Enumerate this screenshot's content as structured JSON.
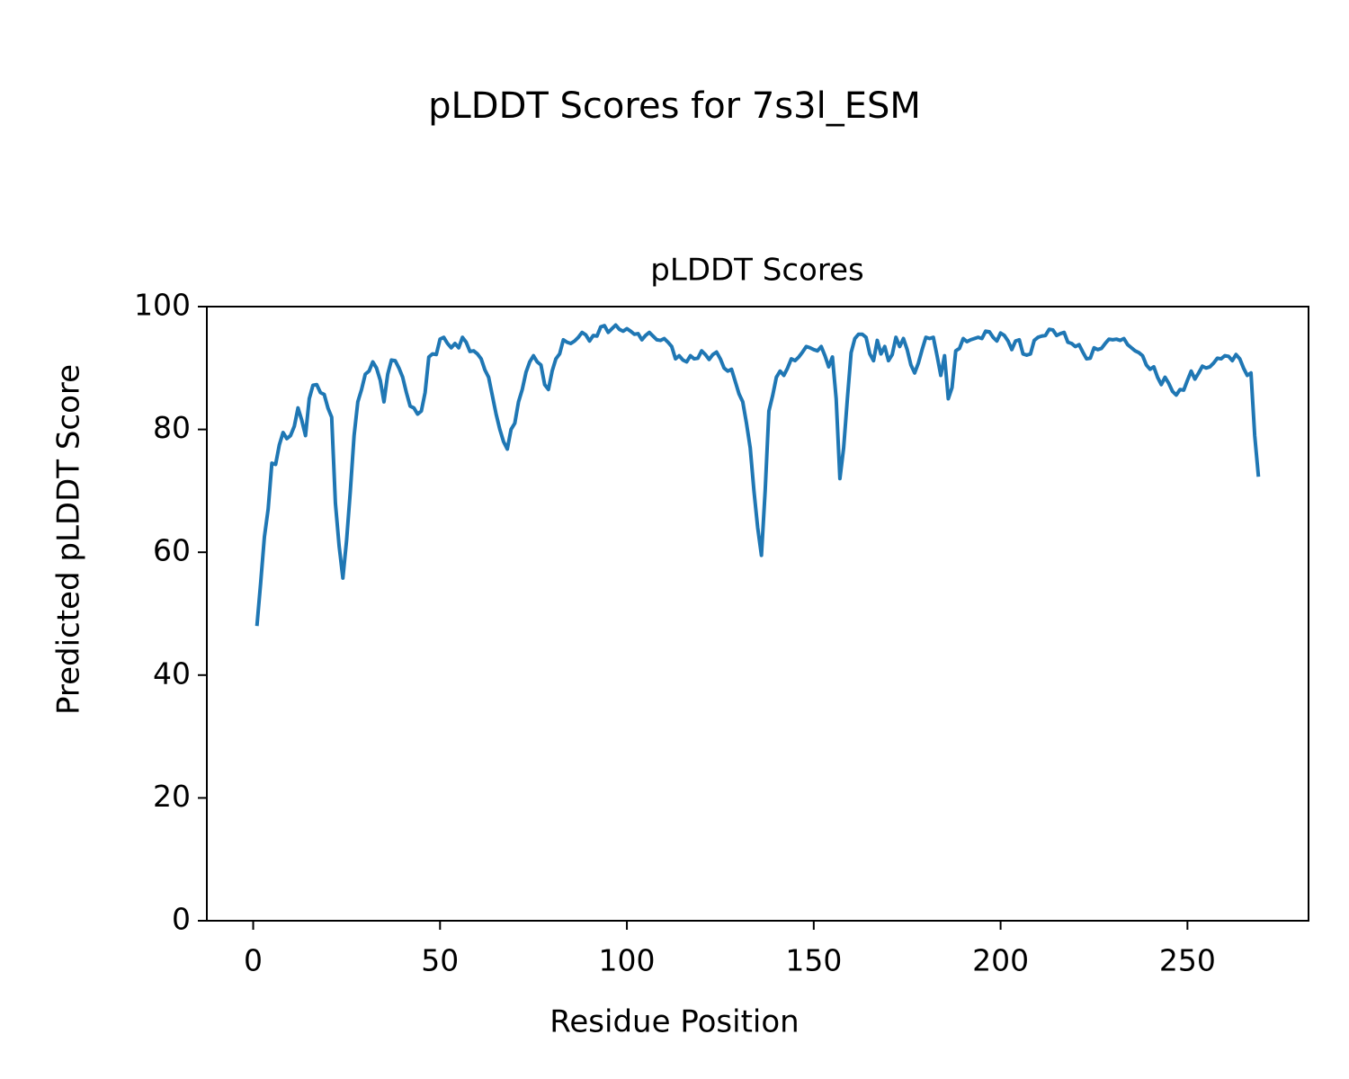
{
  "chart_data": {
    "type": "line",
    "suptitle": "pLDDT Scores for 7s3l_ESM",
    "title": "pLDDT Scores",
    "xlabel": "Residue Position",
    "ylabel": "Predicted pLDDT Score",
    "xlim": [
      -12.4,
      282.4
    ],
    "xticks": [
      0,
      50,
      100,
      150,
      200,
      250
    ],
    "ylim": [
      0,
      100
    ],
    "yticks": [
      0,
      20,
      40,
      60,
      80,
      100
    ],
    "grid": false,
    "x": [
      1,
      2,
      3,
      4,
      5,
      6,
      7,
      8,
      9,
      10,
      11,
      12,
      13,
      14,
      15,
      16,
      17,
      18,
      19,
      20,
      21,
      22,
      23,
      24,
      25,
      26,
      27,
      28,
      29,
      30,
      31,
      32,
      33,
      34,
      35,
      36,
      37,
      38,
      39,
      40,
      41,
      42,
      43,
      44,
      45,
      46,
      47,
      48,
      49,
      50,
      51,
      52,
      53,
      54,
      55,
      56,
      57,
      58,
      59,
      60,
      61,
      62,
      63,
      64,
      65,
      66,
      67,
      68,
      69,
      70,
      71,
      72,
      73,
      74,
      75,
      76,
      77,
      78,
      79,
      80,
      81,
      82,
      83,
      84,
      85,
      86,
      87,
      88,
      89,
      90,
      91,
      92,
      93,
      94,
      95,
      96,
      97,
      98,
      99,
      100,
      101,
      102,
      103,
      104,
      105,
      106,
      107,
      108,
      109,
      110,
      111,
      112,
      113,
      114,
      115,
      116,
      117,
      118,
      119,
      120,
      121,
      122,
      123,
      124,
      125,
      126,
      127,
      128,
      129,
      130,
      131,
      132,
      133,
      134,
      135,
      136,
      137,
      138,
      139,
      140,
      141,
      142,
      143,
      144,
      145,
      146,
      147,
      148,
      149,
      150,
      151,
      152,
      153,
      154,
      155,
      156,
      157,
      158,
      159,
      160,
      161,
      162,
      163,
      164,
      165,
      166,
      167,
      168,
      169,
      170,
      171,
      172,
      173,
      174,
      175,
      176,
      177,
      178,
      179,
      180,
      181,
      182,
      183,
      184,
      185,
      186,
      187,
      188,
      189,
      190,
      191,
      192,
      193,
      194,
      195,
      196,
      197,
      198,
      199,
      200,
      201,
      202,
      203,
      204,
      205,
      206,
      207,
      208,
      209,
      210,
      211,
      212,
      213,
      214,
      215,
      216,
      217,
      218,
      219,
      220,
      221,
      222,
      223,
      224,
      225,
      226,
      227,
      228,
      229,
      230,
      231,
      232,
      233,
      234,
      235,
      236,
      237,
      238,
      239,
      240,
      241,
      242,
      243,
      244,
      245,
      246,
      247,
      248,
      249,
      250,
      251,
      252,
      253,
      254,
      255,
      256,
      257,
      258,
      259,
      260,
      261,
      262,
      263,
      264,
      265,
      266,
      267,
      268,
      269
    ],
    "series": [
      {
        "name": "pLDDT",
        "color": "#1f77b4",
        "values": [
          48,
          55,
          62.5,
          67,
          74.5,
          74.3,
          77.5,
          79.5,
          78.5,
          79,
          80.5,
          83.5,
          81.5,
          79,
          85,
          87.2,
          87.3,
          86,
          85.7,
          83.5,
          82,
          68,
          61,
          55.8,
          62,
          70,
          79,
          84.5,
          86.5,
          89,
          89.5,
          91,
          90,
          88,
          84.5,
          89,
          91.3,
          91.2,
          90,
          88.5,
          86,
          83.8,
          83.5,
          82.5,
          83,
          86,
          91.8,
          92.3,
          92.2,
          94.7,
          95,
          94,
          93.3,
          94,
          93.3,
          95,
          94.2,
          92.7,
          92.8,
          92.3,
          91.5,
          89.7,
          88.5,
          85.5,
          82.5,
          80,
          78,
          76.8,
          80,
          81,
          84.5,
          86.5,
          89.3,
          91,
          92,
          91,
          90.5,
          87.3,
          86.5,
          89.5,
          91.5,
          92.3,
          94.6,
          94.2,
          94,
          94.4,
          95,
          95.8,
          95.4,
          94.4,
          95.3,
          95.2,
          96.7,
          96.9,
          95.8,
          96.4,
          97,
          96.3,
          96,
          96.4,
          96,
          95.5,
          95.6,
          94.6,
          95.3,
          95.8,
          95.2,
          94.6,
          94.5,
          94.8,
          94.2,
          93.5,
          91.5,
          92,
          91.3,
          91,
          92,
          91.5,
          91.6,
          92.8,
          92.2,
          91.4,
          92.2,
          92.6,
          91.5,
          90,
          89.5,
          89.8,
          87.8,
          85.8,
          84.5,
          81,
          77,
          70,
          64,
          59.5,
          70,
          83,
          85.5,
          88.5,
          89.5,
          88.8,
          90,
          91.5,
          91.2,
          91.8,
          92.6,
          93.5,
          93.3,
          93,
          92.8,
          93.5,
          92,
          90.2,
          91.8,
          85,
          72,
          77,
          85,
          92.5,
          94.8,
          95.5,
          95.5,
          95,
          92.3,
          91.2,
          94.5,
          92.3,
          93.5,
          91.2,
          92.2,
          95,
          93.5,
          94.8,
          93,
          90.5,
          89.2,
          90.8,
          93,
          95,
          94.8,
          95,
          92,
          88.8,
          92,
          85,
          86.8,
          92.8,
          93.2,
          94.8,
          94.3,
          94.6,
          94.8,
          95,
          94.8,
          96,
          95.9,
          95,
          94.4,
          95.7,
          95.3,
          94.4,
          93,
          94.4,
          94.6,
          92.3,
          92.1,
          92.3,
          94.5,
          95,
          95.2,
          95.3,
          96.3,
          96.2,
          95.3,
          95.6,
          95.8,
          94.2,
          94,
          93.5,
          93.8,
          92.6,
          91.5,
          91.6,
          93.3,
          93,
          93.2,
          94,
          94.7,
          94.6,
          94.7,
          94.5,
          94.8,
          93.8,
          93.3,
          92.8,
          92.5,
          92,
          90.5,
          89.8,
          90.2,
          88.5,
          87.3,
          88.5,
          87.5,
          86.2,
          85.6,
          86.5,
          86.4,
          88,
          89.5,
          88.2,
          89.2,
          90.3,
          90,
          90.2,
          90.8,
          91.6,
          91.5,
          92,
          91.9,
          91.2,
          92.2,
          91.5,
          90,
          88.8,
          89.2,
          79,
          72.3
        ]
      }
    ]
  }
}
